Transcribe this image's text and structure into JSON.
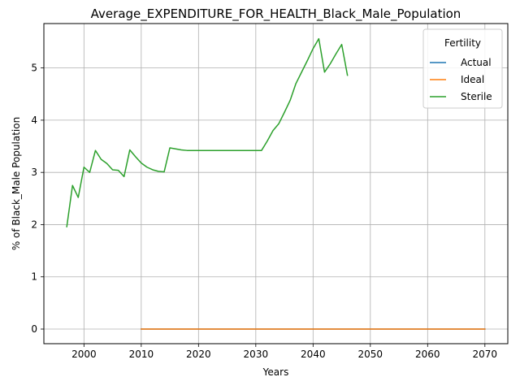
{
  "chart_data": {
    "type": "line",
    "title": "Average_EXPENDITURE_FOR_HEALTH_Black_Male_Population",
    "xlabel": "Years",
    "ylabel": "% of Black_Male Population",
    "xlim": [
      1993,
      2074
    ],
    "ylim": [
      -0.28,
      5.85
    ],
    "xticks": [
      2000,
      2010,
      2020,
      2030,
      2040,
      2050,
      2060,
      2070
    ],
    "yticks": [
      0,
      1,
      2,
      3,
      4,
      5
    ],
    "grid": true,
    "legend": {
      "title": "Fertility",
      "placement": "top-right"
    },
    "series": [
      {
        "name": "Actual",
        "color": "#1f77b4",
        "x": [
          2010,
          2070
        ],
        "y": [
          0,
          0
        ]
      },
      {
        "name": "Ideal",
        "color": "#ff7f0e",
        "x": [
          2010,
          2070
        ],
        "y": [
          0,
          0
        ]
      },
      {
        "name": "Sterile",
        "color": "#2ca02c",
        "x": [
          1997,
          1998,
          1999,
          2000,
          2001,
          2002,
          2003,
          2004,
          2005,
          2006,
          2007,
          2008,
          2009,
          2010,
          2011,
          2012,
          2013,
          2014,
          2015,
          2016,
          2017,
          2018,
          2019,
          2020,
          2021,
          2022,
          2023,
          2024,
          2025,
          2026,
          2027,
          2028,
          2029,
          2030,
          2031,
          2032,
          2033,
          2034,
          2035,
          2036,
          2037,
          2038,
          2039,
          2040,
          2041,
          2042,
          2043,
          2044,
          2045,
          2046
        ],
        "y": [
          1.96,
          2.75,
          2.52,
          3.1,
          3.0,
          3.42,
          3.25,
          3.17,
          3.05,
          3.04,
          2.92,
          3.43,
          3.3,
          3.18,
          3.1,
          3.05,
          3.02,
          3.01,
          3.47,
          3.45,
          3.43,
          3.42,
          3.42,
          3.42,
          3.42,
          3.42,
          3.42,
          3.42,
          3.42,
          3.42,
          3.42,
          3.42,
          3.42,
          3.42,
          3.42,
          3.6,
          3.8,
          3.93,
          4.15,
          4.38,
          4.7,
          4.92,
          5.14,
          5.37,
          5.56,
          4.92,
          5.08,
          5.27,
          5.45,
          4.86
        ]
      }
    ]
  }
}
